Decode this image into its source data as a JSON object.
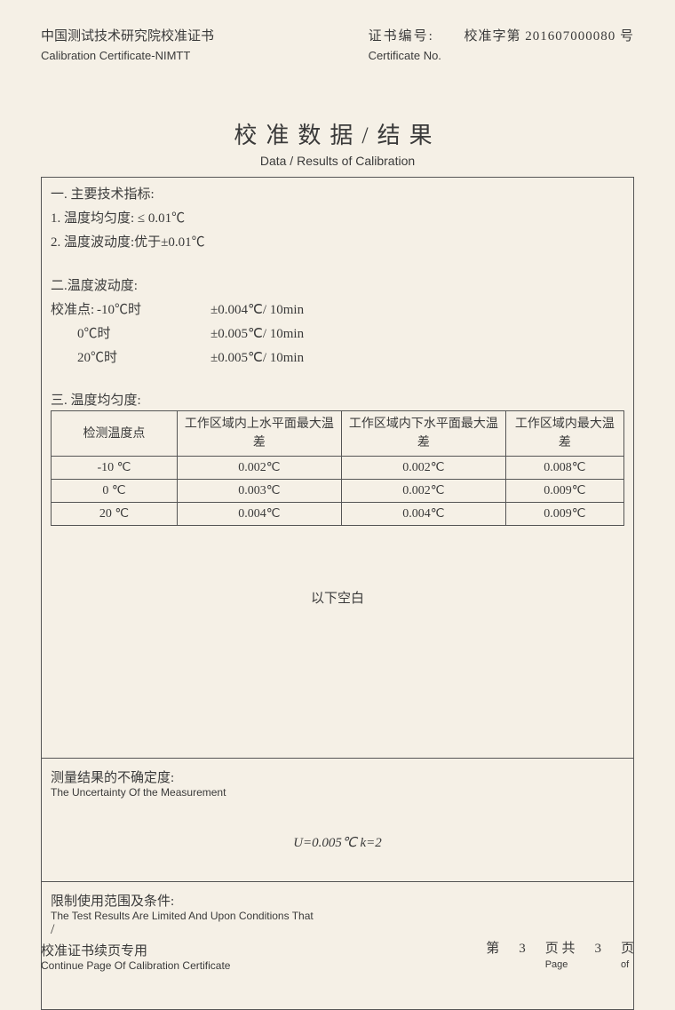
{
  "header": {
    "org_cn": "中国测试技术研究院校准证书",
    "org_en": "Calibration Certificate-NIMTT",
    "certno_label_cn": "证书编号:",
    "certno_label_en": "Certificate No.",
    "certno_value": "校准字第 201607000080 号"
  },
  "title": {
    "cn": "校准数据/结果",
    "en": "Data / Results of Calibration"
  },
  "section1": {
    "heading": "一. 主要技术指标:",
    "line1": "1.  温度均匀度: ≤ 0.01℃",
    "line2": "2.  温度波动度:优于±0.01℃"
  },
  "section2": {
    "heading": "二.温度波动度:",
    "rows": [
      {
        "label": "校准点:",
        "point": "-10℃时",
        "value": "±0.004℃/ 10min"
      },
      {
        "label": "",
        "point": "0℃时",
        "value": "±0.005℃/ 10min"
      },
      {
        "label": "",
        "point": "20℃时",
        "value": "±0.005℃/ 10min"
      }
    ]
  },
  "section3": {
    "heading": "三.  温度均匀度:",
    "table": {
      "columns": [
        "检测温度点",
        "工作区域内上水平面最大温差",
        "工作区域内下水平面最大温差",
        "工作区域内最大温差"
      ],
      "rows": [
        [
          "-10  ℃",
          "0.002℃",
          "0.002℃",
          "0.008℃"
        ],
        [
          "0   ℃",
          "0.003℃",
          "0.002℃",
          "0.009℃"
        ],
        [
          "20  ℃",
          "0.004℃",
          "0.004℃",
          "0.009℃"
        ]
      ],
      "border_color": "#555555",
      "font_size": 14
    }
  },
  "blank_below": "以下空白",
  "uncertainty": {
    "title_cn": "测量结果的不确定度:",
    "title_en": "The Uncertainty Of   the Measurement",
    "value": "U=0.005℃    k=2"
  },
  "limits": {
    "title_cn": "限制使用范围及条件:",
    "title_en": "The Test Results Are Limited And Upon Conditions That",
    "body": "/"
  },
  "footer": {
    "left_cn": "校准证书续页专用",
    "left_en": "Continue Page Of Calibration Certificate",
    "page_cn_1": "第",
    "page_num": "3",
    "page_cn_2": "页 共",
    "page_total": "3",
    "page_cn_3": "页",
    "page_en_1": "Page",
    "page_en_2": "of"
  },
  "colors": {
    "background": "#f5f0e6",
    "text": "#3a3a3a",
    "border": "#555555"
  }
}
